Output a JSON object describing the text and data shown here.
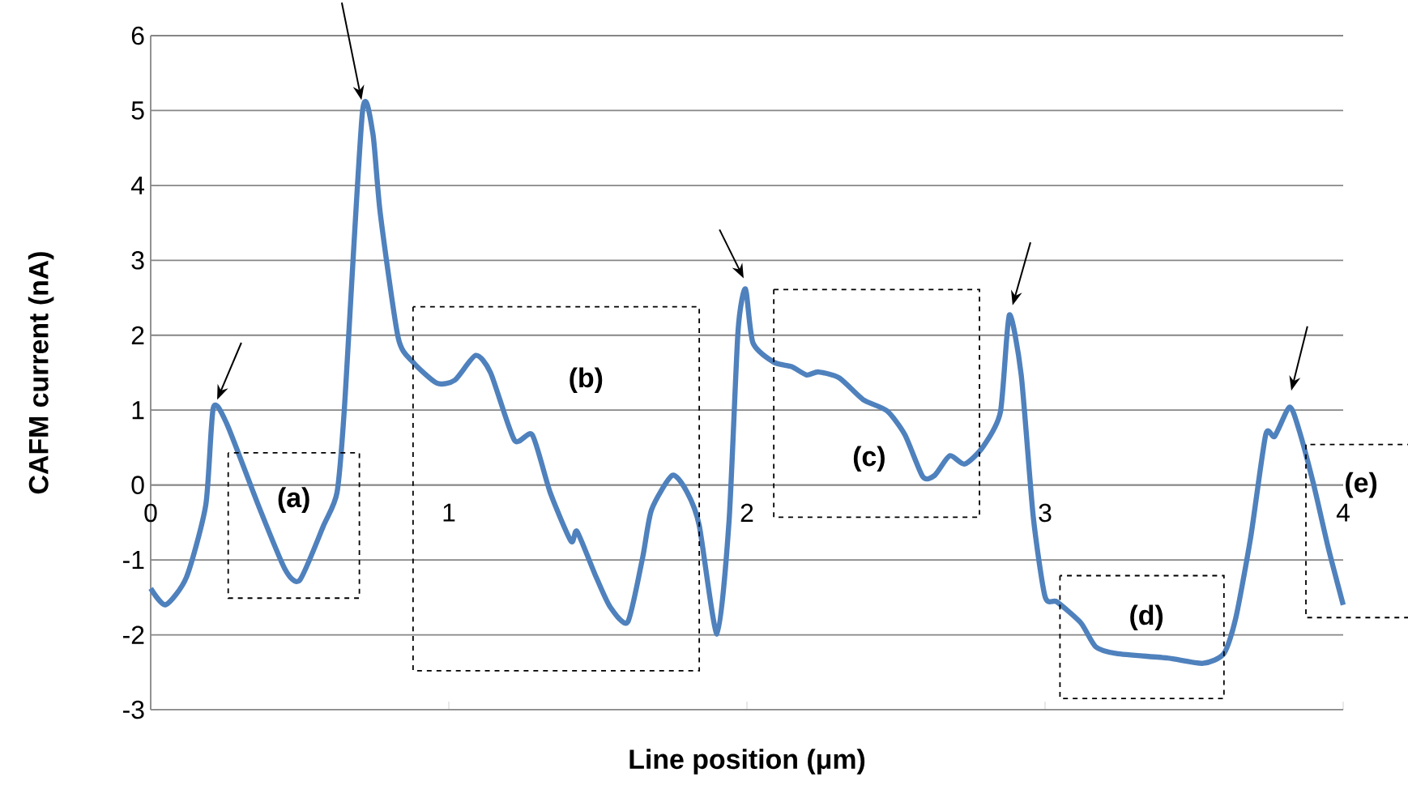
{
  "chart_data": {
    "type": "line",
    "xlabel": "Line position (μm)",
    "ylabel": "CAFM current (nA)",
    "xlim": [
      0,
      4
    ],
    "ylim": [
      -3,
      6
    ],
    "xticks": [
      0,
      1,
      2,
      3,
      4
    ],
    "yticks": [
      -3,
      -2,
      -1,
      0,
      1,
      2,
      3,
      4,
      5,
      6
    ],
    "grid": "y",
    "marker": "none",
    "line_style": "solid",
    "series": [
      {
        "color": "#4f81bd",
        "x": [
          0,
          0.05,
          0.12,
          0.185,
          0.21,
          0.255,
          0.36,
          0.45,
          0.5,
          0.58,
          0.625,
          0.65,
          0.71,
          0.745,
          0.77,
          0.83,
          0.88,
          0.96,
          1.02,
          1.09,
          1.14,
          1.22,
          1.28,
          1.34,
          1.41,
          1.43,
          1.49,
          1.54,
          1.6,
          1.65,
          1.68,
          1.75,
          1.8,
          1.84,
          1.9,
          1.94,
          1.97,
          1.995,
          2.02,
          2.09,
          2.15,
          2.2,
          2.24,
          2.31,
          2.39,
          2.47,
          2.53,
          2.59,
          2.63,
          2.68,
          2.73,
          2.79,
          2.85,
          2.88,
          2.92,
          2.96,
          3.0,
          3.04,
          3.12,
          3.17,
          3.24,
          3.41,
          3.53,
          3.6,
          3.64,
          3.69,
          3.74,
          3.77,
          3.82,
          3.85,
          3.9,
          3.95,
          4.0
        ],
        "values": [
          -1.38,
          -1.6,
          -1.23,
          -0.26,
          1.03,
          0.82,
          -0.26,
          -1.12,
          -1.27,
          -0.54,
          -0.1,
          1.04,
          4.97,
          4.7,
          3.63,
          1.97,
          1.64,
          1.36,
          1.4,
          1.73,
          1.5,
          0.6,
          0.67,
          -0.1,
          -0.75,
          -0.62,
          -1.19,
          -1.62,
          -1.83,
          -0.97,
          -0.33,
          0.13,
          -0.1,
          -0.54,
          -1.99,
          -0.48,
          2.05,
          2.62,
          1.9,
          1.64,
          1.58,
          1.47,
          1.51,
          1.43,
          1.14,
          0.99,
          0.67,
          0.11,
          0.13,
          0.39,
          0.28,
          0.5,
          0.97,
          2.27,
          1.47,
          -0.41,
          -1.49,
          -1.56,
          -1.84,
          -2.16,
          -2.25,
          -2.31,
          -2.38,
          -2.25,
          -1.77,
          -0.69,
          0.67,
          0.65,
          1.04,
          0.76,
          0.02,
          -0.84,
          -1.6
        ]
      }
    ],
    "annotations": [
      "(a)",
      "(b)",
      "(c)",
      "(d)",
      "(e)"
    ]
  }
}
